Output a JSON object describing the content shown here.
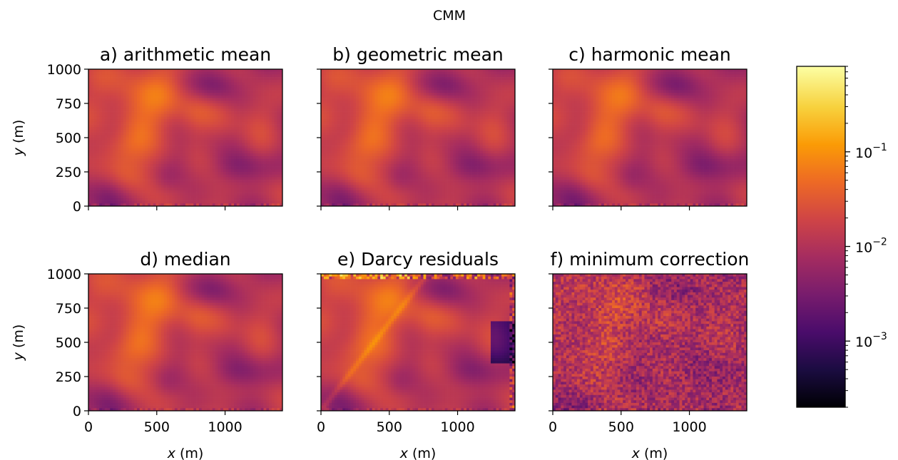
{
  "figure": {
    "suptitle": "CMM"
  },
  "chart_data": [
    {
      "type": "heatmap",
      "title": "a) arithmetic mean",
      "xlabel": "",
      "ylabel": "y (m)",
      "xlim": [
        0,
        1420
      ],
      "ylim": [
        0,
        1000
      ],
      "xticks": [
        0,
        500,
        1000
      ],
      "yticks": [
        0,
        250,
        500,
        750,
        1000
      ],
      "x_ticklabels_visible": false,
      "y_ticklabels_visible": true
    },
    {
      "type": "heatmap",
      "title": "b) geometric mean",
      "xlabel": "",
      "ylabel": "",
      "xlim": [
        0,
        1420
      ],
      "ylim": [
        0,
        1000
      ],
      "xticks": [
        0,
        500,
        1000
      ],
      "yticks": [
        0,
        250,
        500,
        750,
        1000
      ],
      "x_ticklabels_visible": false,
      "y_ticklabels_visible": false
    },
    {
      "type": "heatmap",
      "title": "c) harmonic mean",
      "xlabel": "",
      "ylabel": "",
      "xlim": [
        0,
        1420
      ],
      "ylim": [
        0,
        1000
      ],
      "xticks": [
        0,
        500,
        1000
      ],
      "yticks": [
        0,
        250,
        500,
        750,
        1000
      ],
      "x_ticklabels_visible": false,
      "y_ticklabels_visible": false
    },
    {
      "type": "heatmap",
      "title": "d) median",
      "xlabel": "x (m)",
      "ylabel": "y (m)",
      "xlim": [
        0,
        1420
      ],
      "ylim": [
        0,
        1000
      ],
      "xticks": [
        0,
        500,
        1000
      ],
      "yticks": [
        0,
        250,
        500,
        750,
        1000
      ],
      "x_ticklabels_visible": true,
      "y_ticklabels_visible": true
    },
    {
      "type": "heatmap",
      "title": "e) Darcy residuals",
      "xlabel": "x (m)",
      "ylabel": "",
      "xlim": [
        0,
        1420
      ],
      "ylim": [
        0,
        1000
      ],
      "xticks": [
        0,
        500,
        1000
      ],
      "yticks": [
        0,
        250,
        500,
        750,
        1000
      ],
      "x_ticklabels_visible": true,
      "y_ticklabels_visible": false
    },
    {
      "type": "heatmap",
      "title": "f) minimum correction",
      "xlabel": "x (m)",
      "ylabel": "",
      "xlim": [
        0,
        1420
      ],
      "ylim": [
        0,
        1000
      ],
      "xticks": [
        0,
        500,
        1000
      ],
      "yticks": [
        0,
        250,
        500,
        750,
        1000
      ],
      "x_ticklabels_visible": true,
      "y_ticklabels_visible": false
    }
  ],
  "colorbar": {
    "scale": "log",
    "colormap": "inferno",
    "range": [
      0.0002,
      0.8
    ],
    "ticks": [
      0.001,
      0.01,
      0.1
    ],
    "tick_labels": [
      {
        "base": "10",
        "exp": "−3"
      },
      {
        "base": "10",
        "exp": "−2"
      },
      {
        "base": "10",
        "exp": "−1"
      }
    ],
    "colors": [
      "#000004",
      "#1b0c41",
      "#4a0c6b",
      "#781c6d",
      "#a52c60",
      "#cf4446",
      "#ed6925",
      "#fb9b06",
      "#f7d13d",
      "#fcffa4"
    ]
  }
}
